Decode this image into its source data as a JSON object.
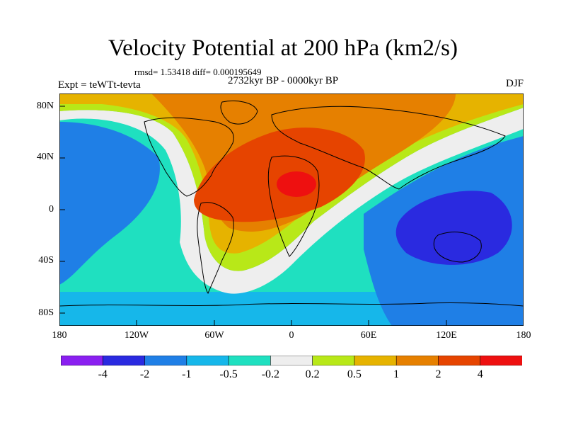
{
  "title": "Velocity Potential at 200 hPa (km2/s)",
  "stats": "rmsd= 1.53418 diff= 0.000195649",
  "experiment": "Expt = teWTt-tevta",
  "period": "2732kyr BP - 0000kyr BP",
  "season": "DJF",
  "lat_labels": [
    "80N",
    "40N",
    "0",
    "40S",
    "80S"
  ],
  "lon_labels": [
    "180",
    "120W",
    "60W",
    "0",
    "60E",
    "120E",
    "180"
  ],
  "colorbar": {
    "labels": [
      "-4",
      "-2",
      "-1",
      "-0.5",
      "-0.2",
      "0.2",
      "0.5",
      "1",
      "2",
      "4"
    ],
    "colors": [
      "#8a1ff0",
      "#2a2ae0",
      "#1f7fe6",
      "#16b7ea",
      "#1fe0c0",
      "#eeeeee",
      "#b8e818",
      "#e6b300",
      "#e68000",
      "#e64400",
      "#ee1010"
    ]
  }
}
